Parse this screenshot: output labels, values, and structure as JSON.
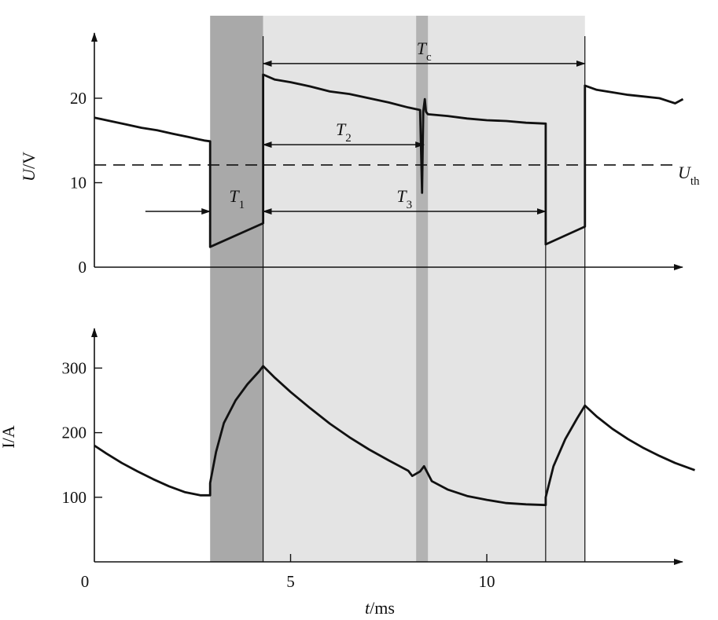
{
  "chart_data": [
    {
      "type": "line",
      "panel": "voltage",
      "ylabel": "U/V",
      "ylim": [
        0,
        25
      ],
      "yticks": [
        "0",
        "10",
        "20"
      ],
      "threshold": {
        "label": "Uth",
        "value": 12.1,
        "style": "dashed"
      },
      "series": [
        {
          "x": [
            0,
            0.4,
            0.8,
            1.2,
            1.6,
            2.0,
            2.4,
            2.8,
            2.95,
            2.95,
            4.3,
            4.3,
            4.6,
            5.0,
            5.5,
            6.0,
            6.5,
            7.0,
            7.5,
            8.0,
            8.3,
            8.35,
            8.38,
            8.42,
            8.45,
            8.5,
            9.0,
            9.5,
            10.0,
            10.5,
            11.0,
            11.5,
            11.5,
            12.5,
            12.5,
            12.8,
            13.2,
            13.6,
            14.0,
            14.4,
            14.8,
            15.0
          ],
          "values": [
            17.7,
            17.3,
            16.9,
            16.5,
            16.2,
            15.8,
            15.4,
            15.0,
            14.9,
            2.4,
            5.2,
            22.8,
            22.2,
            21.9,
            21.4,
            20.8,
            20.5,
            20.0,
            19.5,
            18.9,
            18.6,
            8.8,
            18.4,
            19.9,
            18.4,
            18.1,
            17.9,
            17.6,
            17.4,
            17.3,
            17.1,
            17.0,
            2.7,
            4.8,
            21.5,
            21.0,
            20.7,
            20.4,
            20.2,
            20.0,
            19.4,
            19.9
          ]
        }
      ],
      "annotations": [
        {
          "label": "Tc",
          "from": 4.3,
          "to": 12.5,
          "y": 24.1
        },
        {
          "label": "T2",
          "from": 4.3,
          "to": 8.4,
          "y": 14.5
        },
        {
          "label": "T1",
          "from": 1.3,
          "to": 2.95,
          "y": 6.6
        },
        {
          "label": "T3",
          "from": 4.3,
          "to": 11.5,
          "y": 6.6
        }
      ]
    },
    {
      "type": "line",
      "panel": "current",
      "ylabel": "I/A",
      "xlabel": "t/ms",
      "xlim": [
        0,
        15
      ],
      "xticks": [
        "0",
        "5",
        "10"
      ],
      "ylim": [
        0,
        350
      ],
      "yticks": [
        "100",
        "200",
        "300"
      ],
      "series": [
        {
          "x": [
            0,
            0.3,
            0.7,
            1.1,
            1.5,
            1.9,
            2.3,
            2.7,
            2.95,
            2.95,
            3.1,
            3.3,
            3.6,
            3.9,
            4.2,
            4.3,
            4.6,
            5.0,
            5.5,
            6.0,
            6.5,
            7.0,
            7.5,
            8.0,
            8.1,
            8.3,
            8.4,
            8.6,
            9.0,
            9.5,
            10.0,
            10.5,
            11.0,
            11.5,
            11.5,
            11.7,
            12.0,
            12.3,
            12.5,
            12.8,
            13.2,
            13.6,
            14.0,
            14.4,
            14.8,
            15.3
          ],
          "values": [
            180,
            168,
            153,
            140,
            128,
            117,
            108,
            103,
            103,
            122,
            170,
            215,
            250,
            275,
            295,
            303,
            285,
            263,
            238,
            214,
            193,
            174,
            157,
            141,
            133,
            140,
            148,
            125,
            112,
            102,
            96,
            91,
            89,
            88,
            100,
            148,
            190,
            222,
            242,
            225,
            206,
            190,
            176,
            164,
            153,
            142
          ]
        }
      ]
    }
  ],
  "shaded_bands": [
    {
      "from": 2.95,
      "to": 4.3,
      "shade": "dark"
    },
    {
      "from": 4.3,
      "to": 12.5,
      "shade": "light"
    },
    {
      "from": 8.2,
      "to": 8.5,
      "shade": "medium"
    }
  ],
  "colors": {
    "dark_band": "#a9a9a9",
    "light_band": "#e4e4e4",
    "medium_band": "#b3b3b3",
    "line": "#111111"
  }
}
